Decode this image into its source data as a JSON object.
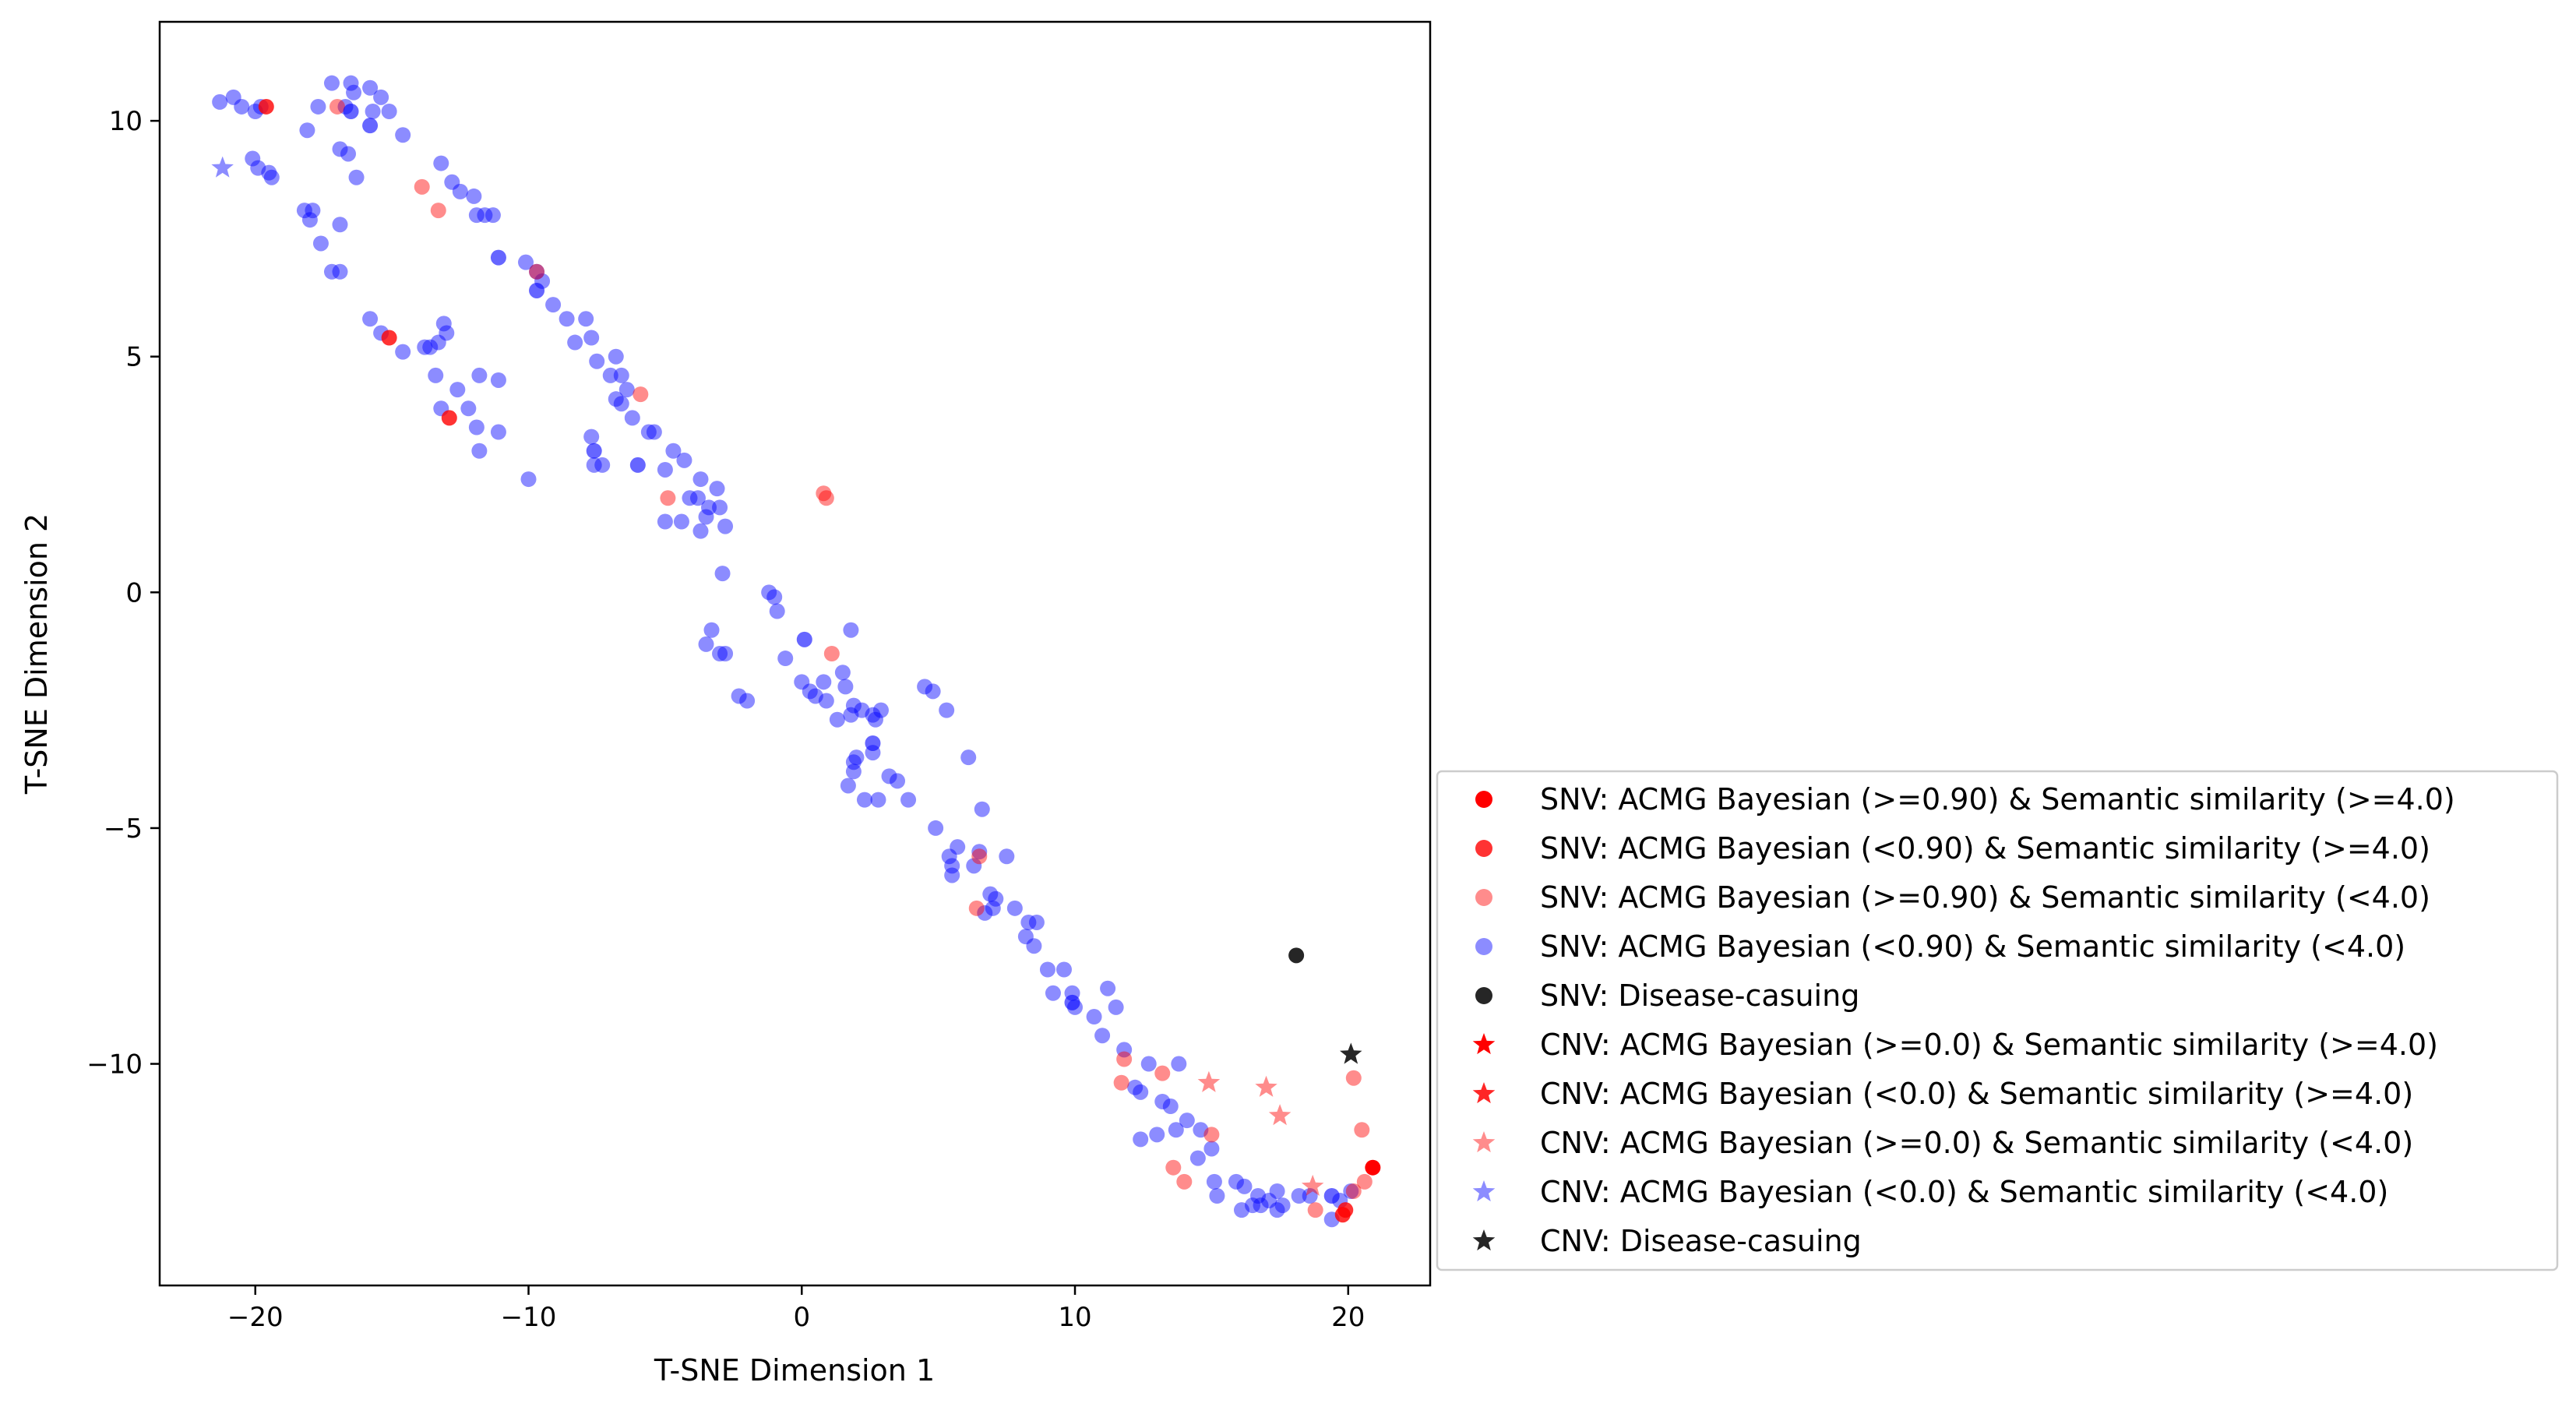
{
  "chart_data": {
    "type": "scatter",
    "title": "",
    "xlabel": "T-SNE Dimension 1",
    "ylabel": "T-SNE Dimension 2",
    "xlim": [
      -23.5,
      23
    ],
    "ylim": [
      -14.7,
      12.1
    ],
    "x_ticks": [
      -20,
      -10,
      0,
      10,
      20
    ],
    "y_ticks": [
      -10,
      -5,
      0,
      5,
      10
    ],
    "x_tick_labels": [
      "−20",
      "−10",
      "0",
      "10",
      "20"
    ],
    "y_tick_labels": [
      "−10",
      "−5",
      "0",
      "5",
      "10"
    ],
    "grid": false,
    "legend_position": "lower-right, outside plot area",
    "series": [
      {
        "name": "SNV: ACMG Bayesian (>=0.90) & Semantic similarity (>=4.0)",
        "marker": "circle",
        "color": "#ff0000",
        "alpha": 1.0,
        "points": [
          [
            20.9,
            -12.2
          ]
        ]
      },
      {
        "name": "SNV: ACMG Bayesian (<0.90) & Semantic similarity (>=4.0)",
        "marker": "circle",
        "color": "#ff0000",
        "alpha": 0.8,
        "points": [
          [
            -19.6,
            10.3
          ],
          [
            -15.1,
            5.4
          ],
          [
            -12.9,
            3.7
          ],
          [
            19.8,
            -13.2
          ],
          [
            19.9,
            -13.1
          ]
        ]
      },
      {
        "name": "SNV: ACMG Bayesian (>=0.90) & Semantic similarity (<4.0)",
        "marker": "circle",
        "color": "#ff0000",
        "alpha": 0.45,
        "points": [
          [
            -17,
            10.3
          ],
          [
            -13.9,
            8.6
          ],
          [
            -13.3,
            8.1
          ],
          [
            -9.7,
            6.8
          ],
          [
            -5.9,
            4.2
          ],
          [
            -4.9,
            2.0
          ],
          [
            0.8,
            2.1
          ],
          [
            0.9,
            2.0
          ],
          [
            1.1,
            -1.3
          ],
          [
            6.5,
            -5.6
          ],
          [
            6.4,
            -6.7
          ],
          [
            11.8,
            -9.9
          ],
          [
            11.7,
            -10.4
          ],
          [
            13.2,
            -10.2
          ],
          [
            13.6,
            -12.2
          ],
          [
            14.0,
            -12.5
          ],
          [
            15.0,
            -11.5
          ],
          [
            18.8,
            -13.1
          ],
          [
            20.2,
            -10.3
          ],
          [
            20.5,
            -11.4
          ],
          [
            20.6,
            -12.5
          ],
          [
            20.2,
            -12.7
          ]
        ]
      },
      {
        "name": "SNV: ACMG Bayesian (<0.90) & Semantic similarity (<4.0)",
        "marker": "circle",
        "color": "#0000ff",
        "alpha": 0.45,
        "points": [
          [
            -21.3,
            10.4
          ],
          [
            -20.8,
            10.5
          ],
          [
            -20.5,
            10.3
          ],
          [
            -20,
            10.2
          ],
          [
            -19.8,
            10.3
          ],
          [
            -18.1,
            9.8
          ],
          [
            -17.7,
            10.3
          ],
          [
            -17.2,
            10.8
          ],
          [
            -16.7,
            10.3
          ],
          [
            -16.5,
            10.8
          ],
          [
            -16.4,
            10.6
          ],
          [
            -15.8,
            10.7
          ],
          [
            -15.7,
            10.2
          ],
          [
            -15.4,
            10.5
          ],
          [
            -15.1,
            10.2
          ],
          [
            -14.6,
            9.7
          ],
          [
            -20.1,
            9.2
          ],
          [
            -19.9,
            9.0
          ],
          [
            -19.5,
            8.9
          ],
          [
            -19.4,
            8.8
          ],
          [
            -16.9,
            9.4
          ],
          [
            -16.6,
            9.3
          ],
          [
            -16.3,
            8.8
          ],
          [
            -18.2,
            8.1
          ],
          [
            -17.9,
            8.1
          ],
          [
            -18,
            7.9
          ],
          [
            -16.9,
            7.8
          ],
          [
            -17.6,
            7.4
          ],
          [
            -17.2,
            6.8
          ],
          [
            -16.9,
            6.8
          ],
          [
            -13.2,
            9.1
          ],
          [
            -12.8,
            8.7
          ],
          [
            -12.5,
            8.5
          ],
          [
            -12,
            8.4
          ],
          [
            -11.9,
            8.0
          ],
          [
            -11.6,
            8.0
          ],
          [
            -11.3,
            8.0
          ],
          [
            -10.1,
            7.0
          ],
          [
            -9.7,
            6.8
          ],
          [
            -9.5,
            6.6
          ],
          [
            -9.1,
            6.1
          ],
          [
            -8.6,
            5.8
          ],
          [
            -8.3,
            5.3
          ],
          [
            -7.9,
            5.8
          ],
          [
            -7.7,
            5.4
          ],
          [
            -7.5,
            4.9
          ],
          [
            -7.0,
            4.6
          ],
          [
            -6.8,
            5.0
          ],
          [
            -6.6,
            4.6
          ],
          [
            -6.8,
            4.1
          ],
          [
            -6.6,
            4.0
          ],
          [
            -6.4,
            4.3
          ],
          [
            -15.8,
            5.8
          ],
          [
            -15.4,
            5.5
          ],
          [
            -14.6,
            5.1
          ],
          [
            -13.3,
            5.3
          ],
          [
            -13.1,
            5.7
          ],
          [
            -13.0,
            5.5
          ],
          [
            -13.6,
            5.2
          ],
          [
            -13.8,
            5.2
          ],
          [
            -13.4,
            4.6
          ],
          [
            -12.6,
            4.3
          ],
          [
            -11.8,
            4.6
          ],
          [
            -11.1,
            4.5
          ],
          [
            -13.2,
            3.9
          ],
          [
            -12.2,
            3.9
          ],
          [
            -11.9,
            3.5
          ],
          [
            -11.8,
            3.0
          ],
          [
            -11.1,
            3.4
          ],
          [
            -10.0,
            2.4
          ],
          [
            -7.7,
            3.3
          ],
          [
            -7.6,
            2.7
          ],
          [
            -7.3,
            2.7
          ],
          [
            -6.2,
            3.7
          ],
          [
            -5.6,
            3.4
          ],
          [
            -5.4,
            3.4
          ],
          [
            -5.0,
            2.6
          ],
          [
            -4.7,
            3.0
          ],
          [
            -4.3,
            2.8
          ],
          [
            -4.1,
            2.0
          ],
          [
            -3.7,
            2.4
          ],
          [
            -3.8,
            2.0
          ],
          [
            -3.4,
            1.8
          ],
          [
            -3.1,
            2.2
          ],
          [
            -3.0,
            1.8
          ],
          [
            -4.4,
            1.5
          ],
          [
            -3.7,
            1.3
          ],
          [
            -2.8,
            1.4
          ],
          [
            -3.5,
            1.6
          ],
          [
            -5.0,
            1.5
          ],
          [
            -2.9,
            0.4
          ],
          [
            -3.3,
            -0.8
          ],
          [
            -3.5,
            -1.1
          ],
          [
            -3.0,
            -1.3
          ],
          [
            -2.8,
            -1.3
          ],
          [
            -2.3,
            -2.2
          ],
          [
            -2.0,
            -2.3
          ],
          [
            -1.2,
            0.0
          ],
          [
            -1.0,
            -0.1
          ],
          [
            -0.9,
            -0.4
          ],
          [
            -0.6,
            -1.4
          ],
          [
            0.0,
            -1.9
          ],
          [
            0.3,
            -2.1
          ],
          [
            0.5,
            -2.2
          ],
          [
            0.9,
            -2.3
          ],
          [
            0.8,
            -1.9
          ],
          [
            1.3,
            -2.7
          ],
          [
            1.5,
            -1.7
          ],
          [
            1.6,
            -2.0
          ],
          [
            1.8,
            -0.8
          ],
          [
            1.9,
            -2.4
          ],
          [
            1.8,
            -2.6
          ],
          [
            1.9,
            -3.6
          ],
          [
            1.9,
            -3.8
          ],
          [
            2.0,
            -3.5
          ],
          [
            2.2,
            -2.5
          ],
          [
            2.6,
            -2.6
          ],
          [
            2.7,
            -2.7
          ],
          [
            2.6,
            -3.4
          ],
          [
            2.9,
            -2.5
          ],
          [
            1.7,
            -4.1
          ],
          [
            2.3,
            -4.4
          ],
          [
            2.8,
            -4.4
          ],
          [
            3.2,
            -3.9
          ],
          [
            3.5,
            -4.0
          ],
          [
            3.9,
            -4.4
          ],
          [
            4.5,
            -2.0
          ],
          [
            4.8,
            -2.1
          ],
          [
            5.3,
            -2.5
          ],
          [
            4.9,
            -5.0
          ],
          [
            5.4,
            -5.6
          ],
          [
            5.5,
            -5.8
          ],
          [
            5.7,
            -5.4
          ],
          [
            5.5,
            -6.0
          ],
          [
            6.3,
            -5.8
          ],
          [
            6.5,
            -5.5
          ],
          [
            6.6,
            -4.6
          ],
          [
            6.1,
            -3.5
          ],
          [
            6.7,
            -6.8
          ],
          [
            6.9,
            -6.4
          ],
          [
            7.1,
            -6.5
          ],
          [
            7.0,
            -6.7
          ],
          [
            7.5,
            -5.6
          ],
          [
            7.8,
            -6.7
          ],
          [
            8.2,
            -7.3
          ],
          [
            8.3,
            -7.0
          ],
          [
            8.6,
            -7.0
          ],
          [
            8.5,
            -7.5
          ],
          [
            9.0,
            -8.0
          ],
          [
            9.6,
            -8.0
          ],
          [
            9.2,
            -8.5
          ],
          [
            9.9,
            -8.5
          ],
          [
            10.0,
            -8.8
          ],
          [
            10.7,
            -9.0
          ],
          [
            11.0,
            -9.4
          ],
          [
            11.2,
            -8.4
          ],
          [
            11.5,
            -8.8
          ],
          [
            11.8,
            -9.7
          ],
          [
            12.2,
            -10.5
          ],
          [
            12.4,
            -10.6
          ],
          [
            12.7,
            -10.0
          ],
          [
            13.2,
            -10.8
          ],
          [
            13.5,
            -10.9
          ],
          [
            13.8,
            -10.0
          ],
          [
            13.7,
            -11.4
          ],
          [
            12.4,
            -11.6
          ],
          [
            13.0,
            -11.5
          ],
          [
            14.1,
            -11.2
          ],
          [
            14.6,
            -11.4
          ],
          [
            14.5,
            -12.0
          ],
          [
            15.0,
            -11.8
          ],
          [
            15.1,
            -12.5
          ],
          [
            15.2,
            -12.8
          ],
          [
            15.9,
            -12.5
          ],
          [
            16.1,
            -13.1
          ],
          [
            16.2,
            -12.6
          ],
          [
            16.5,
            -13.0
          ],
          [
            16.7,
            -12.8
          ],
          [
            16.8,
            -13.0
          ],
          [
            17.1,
            -12.9
          ],
          [
            17.4,
            -12.7
          ],
          [
            17.6,
            -13.0
          ],
          [
            17.4,
            -13.1
          ],
          [
            18.2,
            -12.8
          ],
          [
            18.6,
            -12.8
          ],
          [
            19.4,
            -13.3
          ],
          [
            19.7,
            -12.9
          ],
          [
            20.1,
            -12.7
          ]
        ]
      },
      {
        "name": "SNV: Disease-casuing",
        "marker": "circle",
        "color": "#000000",
        "alpha": 0.85,
        "points": [
          [
            18.1,
            -7.7
          ]
        ]
      },
      {
        "name": "CNV: ACMG Bayesian (>=0.0) & Semantic similarity (>=4.0)",
        "marker": "star",
        "color": "#ff0000",
        "alpha": 1.0,
        "points": []
      },
      {
        "name": "CNV: ACMG Bayesian (<0.0) & Semantic similarity (>=4.0)",
        "marker": "star",
        "color": "#ff0000",
        "alpha": 0.85,
        "points": []
      },
      {
        "name": "CNV: ACMG Bayesian (>=0.0) & Semantic similarity (<4.0)",
        "marker": "star",
        "color": "#ff0000",
        "alpha": 0.45,
        "points": [
          [
            14.9,
            -10.4
          ],
          [
            17.0,
            -10.5
          ],
          [
            17.5,
            -11.1
          ],
          [
            18.7,
            -12.6
          ]
        ]
      },
      {
        "name": "CNV: ACMG Bayesian (<0.0) & Semantic similarity (<4.0)",
        "marker": "star",
        "color": "#0000ff",
        "alpha": 0.45,
        "points": [
          [
            -21.2,
            9.0
          ]
        ]
      },
      {
        "name": "CNV: Disease-casuing",
        "marker": "star",
        "color": "#000000",
        "alpha": 0.85,
        "points": [
          [
            20.1,
            -9.8
          ]
        ]
      }
    ],
    "overlap_points": [
      {
        "color": "#0000ff",
        "alpha": 0.6,
        "points": [
          [
            -16.5,
            10.2
          ],
          [
            -15.8,
            9.9
          ],
          [
            -11.1,
            7.1
          ],
          [
            -9.7,
            6.4
          ],
          [
            -7.6,
            3.0
          ],
          [
            -6.0,
            2.7
          ],
          [
            0.1,
            -1.0
          ],
          [
            2.6,
            -3.2
          ],
          [
            9.9,
            -8.7
          ],
          [
            19.4,
            -12.8
          ]
        ]
      }
    ]
  }
}
